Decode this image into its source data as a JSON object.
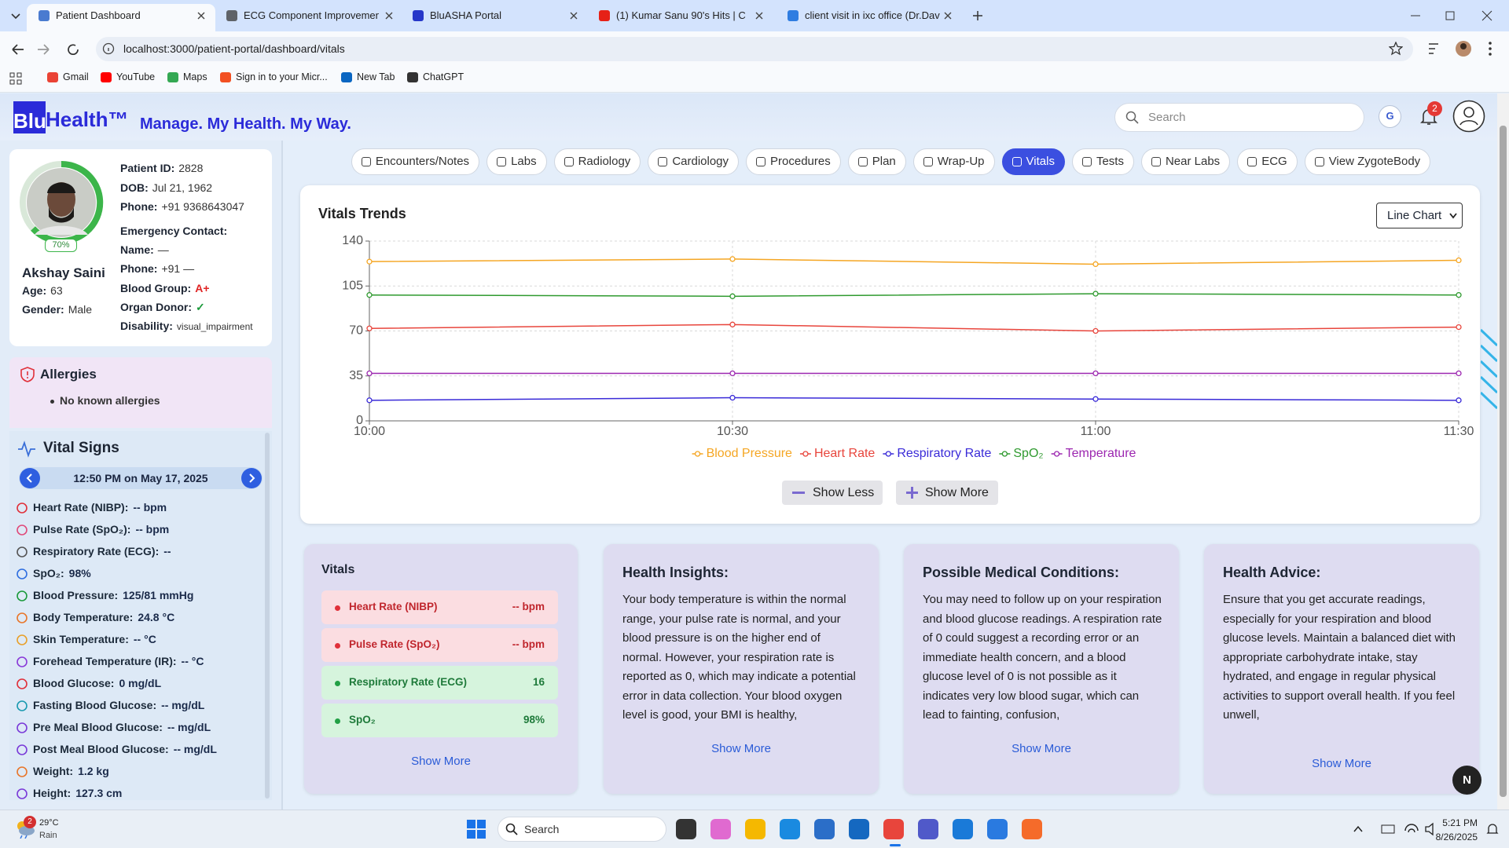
{
  "browser": {
    "tabs": [
      "Patient Dashboard",
      "ECG Component Improvements",
      "BluASHA Portal",
      "(1) Kumar Sanu 90's Hits | C",
      "client visit in ixc office (Dr.David"
    ],
    "url": "localhost:3000/patient-portal/dashboard/vitals",
    "bookmarks": [
      "Gmail",
      "YouTube",
      "Maps",
      "Sign in to your Micr...",
      "New Tab",
      "ChatGPT"
    ]
  },
  "app_header": {
    "logo_box": "Blu",
    "logo_rest": "Health™",
    "tagline": "Manage. My Health. My Way.",
    "search_placeholder": "Search",
    "avatar": "G",
    "notification_count": "2"
  },
  "patient": {
    "progress": "70%",
    "name": "Akshay Saini",
    "left_fields": [
      {
        "label": "Age:",
        "value": "63"
      },
      {
        "label": "Gender:",
        "value": "Male"
      }
    ],
    "fields": [
      {
        "label": "Patient ID:",
        "value": "2828"
      },
      {
        "label": "DOB:",
        "value": "Jul 21, 1962"
      },
      {
        "label": "Phone:",
        "value": "+91 9368643047"
      }
    ],
    "emergency_title": "Emergency Contact:",
    "emergency_fields": [
      {
        "label": "Name:",
        "value": "—"
      },
      {
        "label": "Phone:",
        "value": "+91 —"
      },
      {
        "label": "Blood Group:",
        "value": "A+",
        "color": "#e02424"
      },
      {
        "label": "Organ Donor:",
        "value": "✓",
        "color": "#1a9a3a"
      },
      {
        "label": "Disability:",
        "value": "visual_impairment"
      }
    ]
  },
  "allergies": {
    "title": "Allergies",
    "items": [
      "No known allergies"
    ]
  },
  "vital_signs": {
    "title": "Vital Signs",
    "timestamp": "12:50 PM on May 17, 2025",
    "items": [
      {
        "label": "Heart Rate (NIBP):",
        "value": "-- bpm"
      },
      {
        "label": "Pulse Rate (SpO₂):",
        "value": "-- bpm"
      },
      {
        "label": "Respiratory Rate (ECG):",
        "value": "--"
      },
      {
        "label": "SpO₂:",
        "value": "98%"
      },
      {
        "label": "Blood Pressure:",
        "value": "125/81 mmHg"
      },
      {
        "label": "Body Temperature:",
        "value": "24.8 °C"
      },
      {
        "label": "Skin Temperature:",
        "value": "-- °C"
      },
      {
        "label": "Forehead Temperature (IR):",
        "value": "-- °C"
      },
      {
        "label": "Blood Glucose:",
        "value": "0 mg/dL"
      },
      {
        "label": "Fasting Blood Glucose:",
        "value": "-- mg/dL"
      },
      {
        "label": "Pre Meal Blood Glucose:",
        "value": "-- mg/dL"
      },
      {
        "label": "Post Meal Blood Glucose:",
        "value": "-- mg/dL"
      },
      {
        "label": "Weight:",
        "value": "1.2 kg"
      },
      {
        "label": "Height:",
        "value": "127.3 cm"
      }
    ]
  },
  "nav_tabs": [
    "Encounters/Notes",
    "Labs",
    "Radiology",
    "Cardiology",
    "Procedures",
    "Plan",
    "Wrap-Up",
    "Vitals",
    "Tests",
    "Near Labs",
    "ECG",
    "View ZygoteBody"
  ],
  "active_tab": 7,
  "chart_controls": {
    "chart_type": "Line Chart",
    "show_less": "Show Less",
    "show_more": "Show More"
  },
  "chart_data": {
    "type": "line",
    "title": "Vitals Trends",
    "categories": [
      "10:00",
      "10:30",
      "11:00",
      "11:30"
    ],
    "series": [
      {
        "name": "Blood Pressure",
        "color": "#f5a623",
        "values": [
          124,
          126,
          122,
          125
        ]
      },
      {
        "name": "Heart Rate",
        "color": "#e8453c",
        "values": [
          72,
          75,
          70,
          73
        ]
      },
      {
        "name": "Respiratory Rate",
        "color": "#3a2bd8",
        "values": [
          16,
          18,
          17,
          16
        ]
      },
      {
        "name": "SpO₂",
        "color": "#2f9a2f",
        "values": [
          98,
          97,
          99,
          98
        ]
      },
      {
        "name": "Temperature",
        "color": "#9c27b0",
        "values": [
          37,
          37,
          37,
          37
        ]
      }
    ],
    "ylim": [
      0,
      140
    ],
    "yticks": [
      0,
      35,
      70,
      105,
      140
    ],
    "grid": true,
    "legend": "bottom"
  },
  "vitals_card": {
    "title": "Vitals",
    "items": [
      {
        "label": "Heart Rate (NIBP)",
        "value": "-- bpm",
        "status": "alert"
      },
      {
        "label": "Pulse Rate (SpO₂)",
        "value": "-- bpm",
        "status": "alert"
      },
      {
        "label": "Respiratory Rate (ECG)",
        "value": "16",
        "status": "normal"
      },
      {
        "label": "SpO₂",
        "value": "98%",
        "status": "normal"
      }
    ],
    "more": "Show More"
  },
  "insight_cards": [
    {
      "title": "Health Insights:",
      "text": "Your body temperature is within the normal range, your pulse rate is normal, and your blood pressure is on the higher end of normal. However, your respiration rate is reported as 0, which may indicate a potential error in data collection. Your blood oxygen level is good, your BMI is healthy,",
      "more": "Show More"
    },
    {
      "title": "Possible Medical Conditions:",
      "text": "You may need to follow up on your respiration and blood glucose readings. A respiration rate of 0 could suggest a recording error or an immediate health concern, and a blood glucose level of 0 is not possible as it indicates very low blood sugar, which can lead to fainting, confusion,",
      "more": "Show More"
    },
    {
      "title": "Health Advice:",
      "text": "Ensure that you get accurate readings, especially for your respiration and blood glucose levels. Maintain a balanced diet with appropriate carbohydrate intake, stay hydrated, and engage in regular physical activities to support overall health. If you feel unwell,",
      "more": "Show More"
    }
  ],
  "floating_button": "N",
  "taskbar": {
    "weather_badge": "2",
    "weather_temp": "29°C",
    "weather_desc": "Rain",
    "search": "Search",
    "time": "5:21 PM",
    "date": "8/26/2025"
  }
}
